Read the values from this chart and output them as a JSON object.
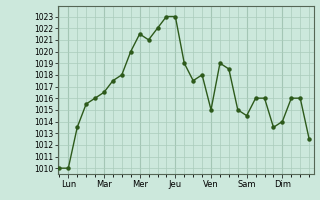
{
  "x_values": [
    0,
    1,
    2,
    3,
    4,
    5,
    6,
    7,
    8,
    9,
    10,
    11,
    12,
    13,
    14,
    15,
    16,
    17,
    18,
    19,
    20,
    21,
    22,
    23,
    24,
    25,
    26,
    27,
    28
  ],
  "y_values": [
    1010,
    1010,
    1013.5,
    1015.5,
    1016,
    1016.5,
    1017.5,
    1018,
    1020,
    1021.5,
    1021,
    1022,
    1023,
    1023,
    1019,
    1017.5,
    1018,
    1015,
    1019,
    1018.5,
    1015,
    1014.5,
    1016,
    1016,
    1013.5,
    1014,
    1016,
    1016,
    1012.5
  ],
  "x_tick_positions": [
    1,
    5,
    9,
    13,
    17,
    21,
    25
  ],
  "x_tick_labels": [
    "Lun",
    "Mar",
    "Mer",
    "Jeu",
    "Ven",
    "Sam",
    "Dim"
  ],
  "day_lines": [
    1,
    5,
    9,
    13,
    17,
    21,
    25
  ],
  "ylim": [
    1009.5,
    1023.9
  ],
  "xlim": [
    -0.2,
    28.5
  ],
  "ytick_start": 1010,
  "ytick_end": 1023,
  "ytick_step": 1,
  "line_color": "#2d5a1b",
  "marker_color": "#2d5a1b",
  "bg_color": "#cce8dc",
  "grid_color": "#aaccbb",
  "grid_major_color": "#99bbaa",
  "spine_color": "#556655"
}
